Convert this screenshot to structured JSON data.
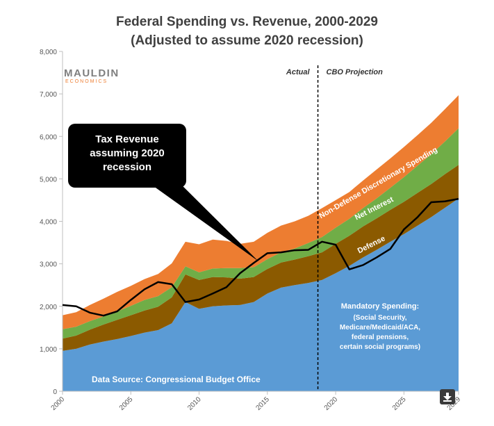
{
  "chart_data": {
    "type": "area",
    "title": "Federal Spending vs. Revenue, 2000-2029",
    "subtitle": "(Adjusted to assume 2020 recession)",
    "xlabel": "",
    "ylabel": "",
    "x": [
      2000,
      2001,
      2002,
      2003,
      2004,
      2005,
      2006,
      2007,
      2008,
      2009,
      2010,
      2011,
      2012,
      2013,
      2014,
      2015,
      2016,
      2017,
      2018,
      2019,
      2020,
      2021,
      2022,
      2023,
      2024,
      2025,
      2026,
      2027,
      2028,
      2029
    ],
    "xlim": [
      2000,
      2029
    ],
    "ylim": [
      0,
      8000
    ],
    "x_ticks": [
      "2000",
      "2005",
      "2010",
      "2015",
      "2020",
      "2025",
      "2029"
    ],
    "y_ticks": [
      "0",
      "1,000",
      "2,000",
      "3,000",
      "4,000",
      "5,000",
      "6,000",
      "7,000",
      "8,000"
    ],
    "stacked": true,
    "series": [
      {
        "name": "Mandatory Spending: (Social Security, Medicare/Medicaid/ACA, federal pensions, certain social programs)",
        "color": "#5b9bd5",
        "values": [
          950,
          1000,
          1100,
          1170,
          1230,
          1300,
          1380,
          1440,
          1600,
          2100,
          1940,
          2000,
          2020,
          2030,
          2100,
          2300,
          2440,
          2500,
          2550,
          2620,
          2780,
          2950,
          3150,
          3330,
          3520,
          3700,
          3900,
          4100,
          4320,
          4540
        ]
      },
      {
        "name": "Defense",
        "color": "#8b5a00",
        "values": [
          290,
          310,
          350,
          400,
          450,
          490,
          520,
          550,
          610,
          650,
          680,
          690,
          660,
          620,
          590,
          580,
          590,
          600,
          630,
          650,
          690,
          710,
          730,
          740,
          750,
          760,
          770,
          780,
          790,
          790
        ]
      },
      {
        "name": "Net Interest",
        "color": "#70ad47",
        "values": [
          220,
          210,
          200,
          190,
          200,
          220,
          250,
          250,
          240,
          190,
          180,
          200,
          220,
          250,
          230,
          230,
          240,
          260,
          310,
          360,
          380,
          400,
          430,
          470,
          520,
          580,
          640,
          700,
          770,
          860
        ]
      },
      {
        "name": "Non-Defense Discretionary Spending",
        "color": "#ed7d31",
        "values": [
          330,
          340,
          380,
          420,
          460,
          470,
          490,
          520,
          560,
          580,
          660,
          680,
          640,
          570,
          600,
          620,
          630,
          640,
          640,
          680,
          650,
          630,
          650,
          680,
          690,
          710,
          720,
          740,
          760,
          780
        ]
      }
    ],
    "line_series": {
      "name": "Tax Revenue assuming 2020 recession",
      "color": "#000000",
      "values": [
        2030,
        2000,
        1850,
        1780,
        1880,
        2150,
        2400,
        2570,
        2520,
        2100,
        2160,
        2300,
        2450,
        2780,
        3020,
        3250,
        3270,
        3320,
        3330,
        3520,
        3450,
        2870,
        2970,
        3150,
        3350,
        3810,
        4100,
        4450,
        4470,
        4530
      ]
    },
    "divider_x": 2018.7,
    "region_labels": {
      "actual": "Actual",
      "projection": "CBO Projection"
    },
    "labels": {
      "mandatory_title": "Mandatory Spending:",
      "mandatory_lines": [
        "(Social Security,",
        "Medicare/Medicaid/ACA,",
        "federal pensions,",
        "certain social programs)"
      ],
      "defense": "Defense",
      "net_interest": "Net Interest",
      "non_defense": "Non-Defense Discretionary Spending",
      "source": "Data Source: Congressional Budget Office"
    },
    "callout_lines": [
      "Tax Revenue",
      "assuming 2020",
      "recession"
    ],
    "grid": false
  },
  "branding": {
    "logo_top": "MAULDIN",
    "logo_bottom": "ECONOMICS",
    "logo_top_color": "#7f7f7f",
    "logo_bottom_color": "#ed7d31"
  },
  "controls": {
    "download_icon": "download-arrow-icon"
  }
}
